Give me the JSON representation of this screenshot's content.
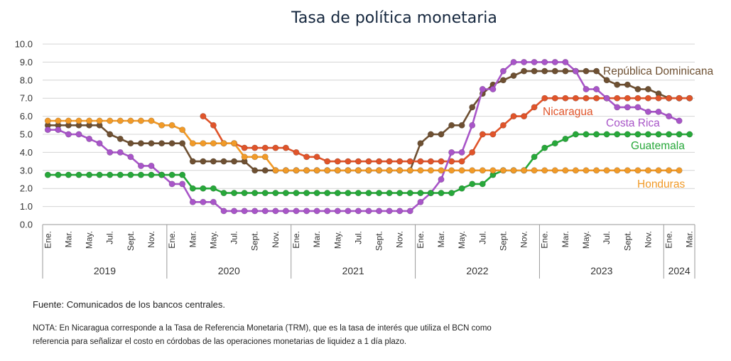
{
  "chart_data": {
    "type": "line",
    "title": "Tasa de política monetaria",
    "ylim": [
      0,
      10
    ],
    "yticks": [
      "0.0",
      "1.0",
      "2.0",
      "3.0",
      "4.0",
      "5.0",
      "6.0",
      "7.0",
      "8.0",
      "9.0",
      "10.0"
    ],
    "grid": true,
    "months": [
      "Ene.",
      "Mar.",
      "May.",
      "Jul.",
      "Sept.",
      "Nov.",
      "Ene.",
      "Mar.",
      "May.",
      "Jul.",
      "Sept.",
      "Nov.",
      "Ene.",
      "Mar.",
      "May.",
      "Jul.",
      "Sept.",
      "Nov.",
      "Ene.",
      "Mar.",
      "May.",
      "Jul.",
      "Sept.",
      "Nov.",
      "Ene.",
      "Mar.",
      "May.",
      "Jul.",
      "Sept.",
      "Nov.",
      "Ene.",
      "Mar."
    ],
    "years": [
      "2019",
      "2020",
      "2021",
      "2022",
      "2023",
      "2024"
    ],
    "x_start": "2019-01",
    "series": [
      {
        "name": "República Dominicana",
        "color": "#6e5032",
        "start": 0,
        "values": [
          5.5,
          5.5,
          5.5,
          5.5,
          5.5,
          5.5,
          5.0,
          4.75,
          4.5,
          4.5,
          4.5,
          4.5,
          4.5,
          4.5,
          3.5,
          3.5,
          3.5,
          3.5,
          3.5,
          3.5,
          3.0,
          3.0,
          3.0,
          3.0,
          3.0,
          3.0,
          3.0,
          3.0,
          3.0,
          3.0,
          3.0,
          3.0,
          3.0,
          3.0,
          3.0,
          3.0,
          4.5,
          5.0,
          5.0,
          5.5,
          5.5,
          6.5,
          7.25,
          7.75,
          8.0,
          8.25,
          8.5,
          8.5,
          8.5,
          8.5,
          8.5,
          8.5,
          8.5,
          8.5,
          8.0,
          7.75,
          7.75,
          7.5,
          7.5,
          7.25,
          7.0,
          7.0,
          7.0
        ]
      },
      {
        "name": "Nicaragua",
        "color": "#e0542a",
        "start": 15,
        "values": [
          6.0,
          5.5,
          4.5,
          4.5,
          4.25,
          4.25,
          4.25,
          4.25,
          4.25,
          4.0,
          3.75,
          3.75,
          3.5,
          3.5,
          3.5,
          3.5,
          3.5,
          3.5,
          3.5,
          3.5,
          3.5,
          3.5,
          3.5,
          3.5,
          3.5,
          3.5,
          4.0,
          5.0,
          5.0,
          5.5,
          6.0,
          6.0,
          6.5,
          7.0,
          7.0,
          7.0,
          7.0,
          7.0,
          7.0,
          7.0,
          7.0,
          7.0,
          7.0,
          7.0,
          7.0,
          7.0,
          7.0,
          7.0
        ]
      },
      {
        "name": "Costa Rica",
        "color": "#a855c8",
        "start": 0,
        "values": [
          5.25,
          5.25,
          5.0,
          5.0,
          4.75,
          4.5,
          4.0,
          4.0,
          3.75,
          3.25,
          3.25,
          2.75,
          2.25,
          2.25,
          1.25,
          1.25,
          1.25,
          0.75,
          0.75,
          0.75,
          0.75,
          0.75,
          0.75,
          0.75,
          0.75,
          0.75,
          0.75,
          0.75,
          0.75,
          0.75,
          0.75,
          0.75,
          0.75,
          0.75,
          0.75,
          0.75,
          1.25,
          1.75,
          2.5,
          4.0,
          4.0,
          5.5,
          7.5,
          7.5,
          8.5,
          9.0,
          9.0,
          9.0,
          9.0,
          9.0,
          9.0,
          8.5,
          7.5,
          7.5,
          7.0,
          6.5,
          6.5,
          6.5,
          6.25,
          6.25,
          6.0,
          5.75
        ]
      },
      {
        "name": "Guatemala",
        "color": "#27a83a",
        "start": 0,
        "values": [
          2.75,
          2.75,
          2.75,
          2.75,
          2.75,
          2.75,
          2.75,
          2.75,
          2.75,
          2.75,
          2.75,
          2.75,
          2.75,
          2.75,
          2.0,
          2.0,
          2.0,
          1.75,
          1.75,
          1.75,
          1.75,
          1.75,
          1.75,
          1.75,
          1.75,
          1.75,
          1.75,
          1.75,
          1.75,
          1.75,
          1.75,
          1.75,
          1.75,
          1.75,
          1.75,
          1.75,
          1.75,
          1.75,
          1.75,
          1.75,
          2.0,
          2.25,
          2.25,
          2.75,
          3.0,
          3.0,
          3.0,
          3.75,
          4.25,
          4.5,
          4.75,
          5.0,
          5.0,
          5.0,
          5.0,
          5.0,
          5.0,
          5.0,
          5.0,
          5.0,
          5.0,
          5.0,
          5.0
        ]
      },
      {
        "name": "Honduras",
        "color": "#f19a28",
        "start": 0,
        "values": [
          5.75,
          5.75,
          5.75,
          5.75,
          5.75,
          5.75,
          5.75,
          5.75,
          5.75,
          5.75,
          5.75,
          5.5,
          5.5,
          5.25,
          4.5,
          4.5,
          4.5,
          4.5,
          4.5,
          3.75,
          3.75,
          3.75,
          3.0,
          3.0,
          3.0,
          3.0,
          3.0,
          3.0,
          3.0,
          3.0,
          3.0,
          3.0,
          3.0,
          3.0,
          3.0,
          3.0,
          3.0,
          3.0,
          3.0,
          3.0,
          3.0,
          3.0,
          3.0,
          3.0,
          3.0,
          3.0,
          3.0,
          3.0,
          3.0,
          3.0,
          3.0,
          3.0,
          3.0,
          3.0,
          3.0,
          3.0,
          3.0,
          3.0,
          3.0,
          3.0,
          3.0,
          3.0
        ]
      }
    ]
  },
  "footer": {
    "source": "Fuente: Comunicados de los bancos centrales.",
    "note_line1": "NOTA: En Nicaragua corresponde a la Tasa de Referencia Monetaria (TRM), que es la tasa de interés que utiliza el BCN como",
    "note_line2": "referencia para señalizar el costo en córdobas de las operaciones monetarias de liquidez a 1 día plazo."
  }
}
